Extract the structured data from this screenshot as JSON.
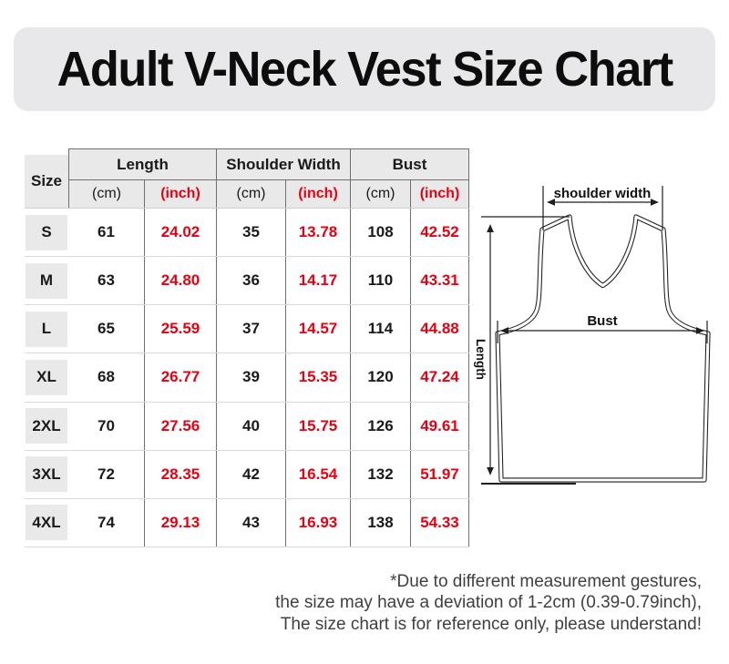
{
  "title": "Adult V-Neck Vest Size Chart",
  "colors": {
    "accent_red": "#e60012",
    "header_gray": "#e9e9e9",
    "banner_gray": "#e8e8ea"
  },
  "table": {
    "corner": "Size",
    "groups": [
      "Length",
      "Shoulder Width",
      "Bust"
    ],
    "units": {
      "cm": "(cm)",
      "inch": "(inch)"
    },
    "rows": [
      {
        "size": "S",
        "values": [
          "61",
          "24.02",
          "35",
          "13.78",
          "108",
          "42.52"
        ]
      },
      {
        "size": "M",
        "values": [
          "63",
          "24.80",
          "36",
          "14.17",
          "110",
          "43.31"
        ]
      },
      {
        "size": "L",
        "values": [
          "65",
          "25.59",
          "37",
          "14.57",
          "114",
          "44.88"
        ]
      },
      {
        "size": "XL",
        "values": [
          "68",
          "26.77",
          "39",
          "15.35",
          "120",
          "47.24"
        ]
      },
      {
        "size": "2XL",
        "values": [
          "70",
          "27.56",
          "40",
          "15.75",
          "126",
          "49.61"
        ]
      },
      {
        "size": "3XL",
        "values": [
          "72",
          "28.35",
          "42",
          "16.54",
          "132",
          "51.97"
        ]
      },
      {
        "size": "4XL",
        "values": [
          "74",
          "29.13",
          "43",
          "16.93",
          "138",
          "54.33"
        ]
      }
    ]
  },
  "diagram": {
    "labels": {
      "shoulder_width": "shoulder width",
      "bust": "Bust",
      "length": "Length"
    }
  },
  "disclaimer": {
    "line1": "*Due to different measurement gestures,",
    "line2": "the size may have a deviation of 1-2cm (0.39-0.79inch),",
    "line3": "The size chart is for reference only, please understand!"
  },
  "chart_data": {
    "type": "table",
    "title": "Adult V-Neck Vest Size Chart",
    "columns": [
      "Size",
      "Length (cm)",
      "Length (inch)",
      "Shoulder Width (cm)",
      "Shoulder Width (inch)",
      "Bust (cm)",
      "Bust (inch)"
    ],
    "rows": [
      [
        "S",
        61,
        24.02,
        35,
        13.78,
        108,
        42.52
      ],
      [
        "M",
        63,
        24.8,
        36,
        14.17,
        110,
        43.31
      ],
      [
        "L",
        65,
        25.59,
        37,
        14.57,
        114,
        44.88
      ],
      [
        "XL",
        68,
        26.77,
        39,
        15.35,
        120,
        47.24
      ],
      [
        "2XL",
        70,
        27.56,
        40,
        15.75,
        126,
        49.61
      ],
      [
        "3XL",
        72,
        28.35,
        42,
        16.54,
        132,
        51.97
      ],
      [
        "4XL",
        74,
        29.13,
        43,
        16.93,
        138,
        54.33
      ]
    ],
    "units_note": "cm values black, inch values red",
    "legend_position": "none",
    "grid": true
  }
}
